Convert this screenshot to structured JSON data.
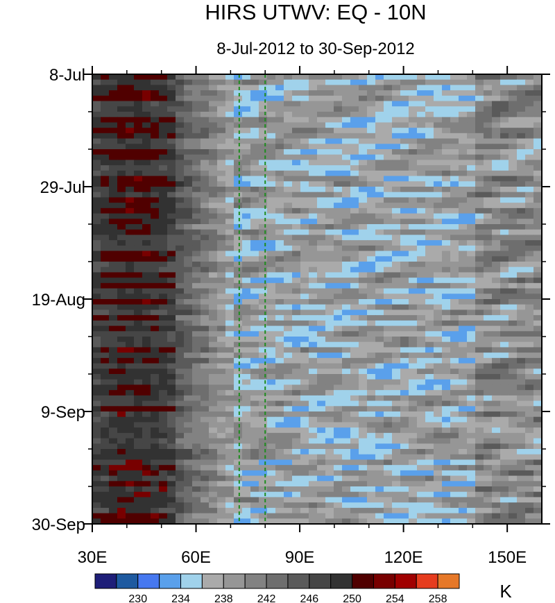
{
  "chart_data": {
    "type": "heatmap",
    "title": "HIRS UTWV: EQ - 10N",
    "subtitle": "8-Jul-2012 to 30-Sep-2012",
    "x_range": [
      30,
      160
    ],
    "y_range": [
      "2012-07-08",
      "2012-09-30"
    ],
    "x_ticks": [
      {
        "value": 30,
        "label": "30E"
      },
      {
        "value": 60,
        "label": "60E"
      },
      {
        "value": 90,
        "label": "90E"
      },
      {
        "value": 120,
        "label": "120E"
      },
      {
        "value": 150,
        "label": "150E"
      }
    ],
    "y_ticks": [
      {
        "value": "2012-07-08",
        "label": "8-Jul"
      },
      {
        "value": "2012-07-29",
        "label": "29-Jul"
      },
      {
        "value": "2012-08-19",
        "label": "19-Aug"
      },
      {
        "value": "2012-09-09",
        "label": "9-Sep"
      },
      {
        "value": "2012-09-30",
        "label": "30-Sep"
      }
    ],
    "reference_lines_x": [
      72.5,
      80
    ],
    "reference_line_color": "#1e8c1e",
    "colorbar": {
      "unit": "K",
      "colors": [
        "#1e1e78",
        "#1e5aa0",
        "#4678f0",
        "#5aa0eb",
        "#a0d2eb",
        "#aaaaaa",
        "#969696",
        "#828282",
        "#6e6e6e",
        "#5a5a5a",
        "#464646",
        "#323232",
        "#500000",
        "#780000",
        "#a00000",
        "#e63c1e",
        "#e67828"
      ],
      "label_values": [
        230,
        234,
        238,
        242,
        246,
        250,
        254,
        258
      ]
    },
    "grid": false
  }
}
